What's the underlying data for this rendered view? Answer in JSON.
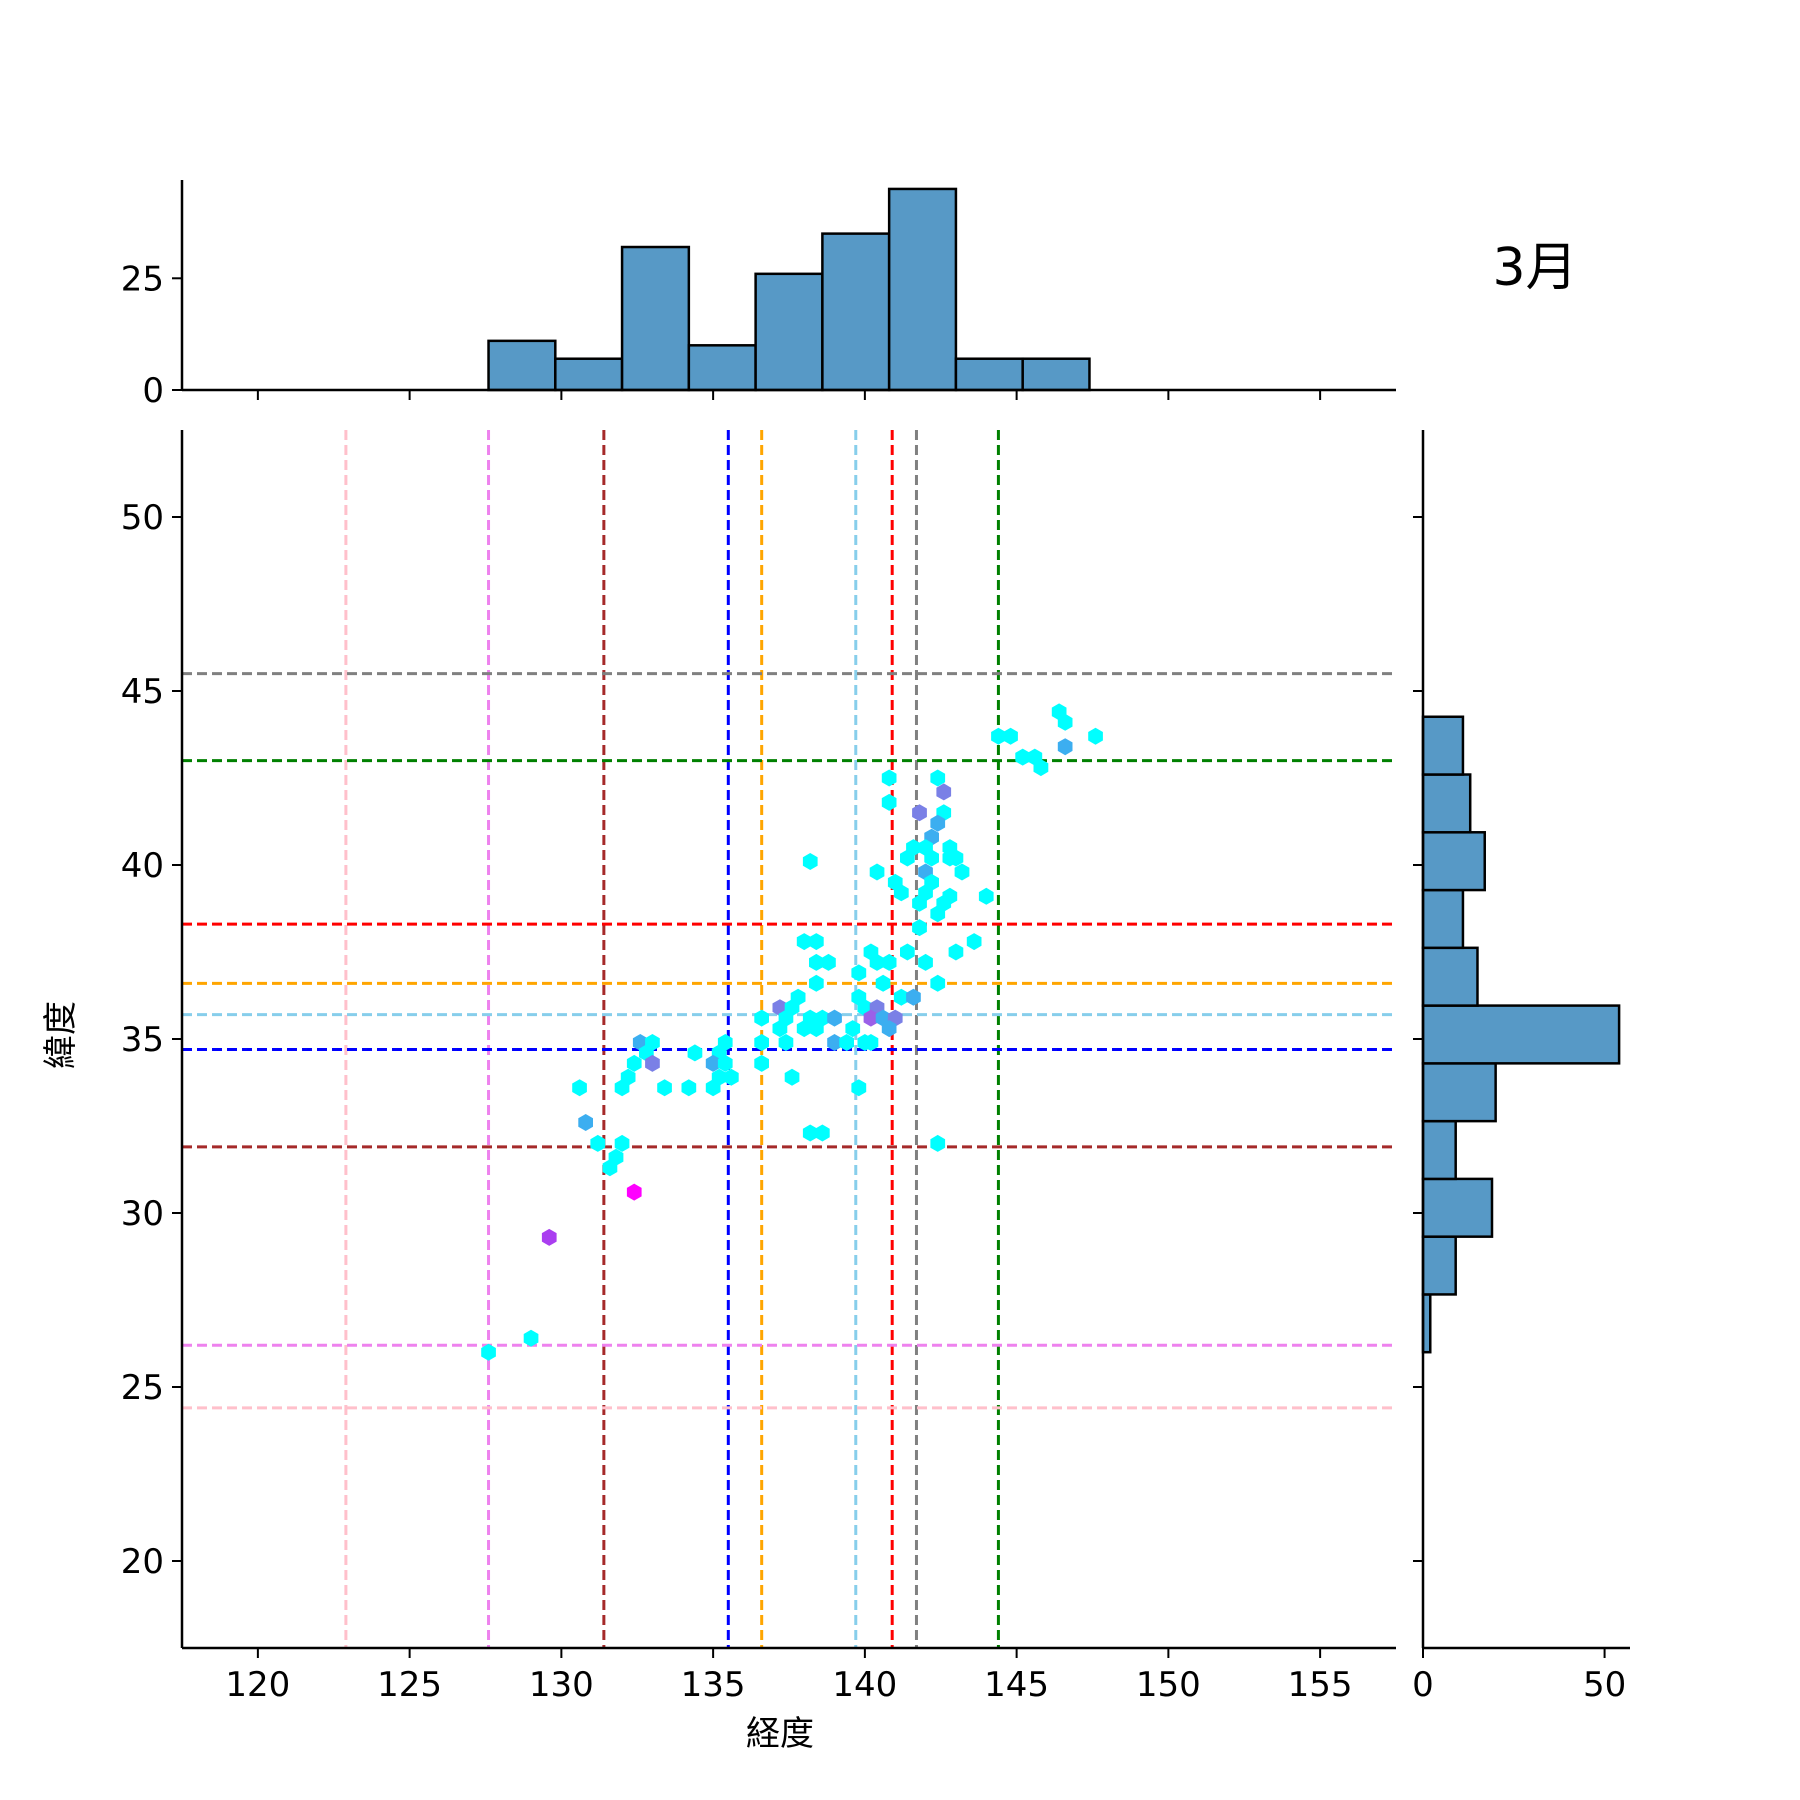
{
  "chart_data": {
    "type": "hexbin",
    "title": "3月",
    "xlabel": "経度",
    "ylabel": "緯度",
    "xlim": [
      117.5,
      157.5
    ],
    "ylim": [
      17.5,
      52.5
    ],
    "xticks": [
      120,
      125,
      130,
      135,
      140,
      145,
      150,
      155
    ],
    "yticks": [
      20,
      25,
      30,
      35,
      40,
      45,
      50
    ],
    "xtick_labels": [
      "120",
      "125",
      "130",
      "135",
      "140",
      "145",
      "150",
      "155"
    ],
    "ytick_labels": [
      "20",
      "25",
      "30",
      "35",
      "40",
      "45",
      "50"
    ],
    "reference_lines": {
      "vertical": [
        {
          "x": 122.9,
          "color": "#ffc0cb"
        },
        {
          "x": 127.6,
          "color": "#ee82ee"
        },
        {
          "x": 131.4,
          "color": "#a52a2a"
        },
        {
          "x": 135.5,
          "color": "#0000ff"
        },
        {
          "x": 136.6,
          "color": "#ffa500"
        },
        {
          "x": 139.7,
          "color": "#87ceeb"
        },
        {
          "x": 140.9,
          "color": "#ff0000"
        },
        {
          "x": 141.7,
          "color": "#808080"
        },
        {
          "x": 144.4,
          "color": "#008000"
        }
      ],
      "horizontal": [
        {
          "y": 45.5,
          "color": "#808080"
        },
        {
          "y": 43.0,
          "color": "#008000"
        },
        {
          "y": 38.3,
          "color": "#ff0000"
        },
        {
          "y": 36.6,
          "color": "#ffa500"
        },
        {
          "y": 35.7,
          "color": "#87ceeb"
        },
        {
          "y": 34.7,
          "color": "#0000ff"
        },
        {
          "y": 31.9,
          "color": "#a52a2a"
        },
        {
          "y": 26.2,
          "color": "#ee82ee"
        },
        {
          "y": 24.4,
          "color": "#ffc0cb"
        }
      ]
    },
    "points": [
      {
        "x": 146.4,
        "y": 44.4,
        "c": 1
      },
      {
        "x": 146.6,
        "y": 44.1,
        "c": 1
      },
      {
        "x": 144.4,
        "y": 43.7,
        "c": 1
      },
      {
        "x": 144.8,
        "y": 43.7,
        "c": 1
      },
      {
        "x": 147.6,
        "y": 43.7,
        "c": 1
      },
      {
        "x": 146.6,
        "y": 43.4,
        "c": 2
      },
      {
        "x": 145.2,
        "y": 43.1,
        "c": 1
      },
      {
        "x": 145.6,
        "y": 43.1,
        "c": 1
      },
      {
        "x": 145.8,
        "y": 42.8,
        "c": 1
      },
      {
        "x": 140.8,
        "y": 42.5,
        "c": 1
      },
      {
        "x": 142.4,
        "y": 42.5,
        "c": 1
      },
      {
        "x": 142.6,
        "y": 42.1,
        "c": 3
      },
      {
        "x": 140.8,
        "y": 41.8,
        "c": 1
      },
      {
        "x": 141.8,
        "y": 41.5,
        "c": 3
      },
      {
        "x": 142.6,
        "y": 41.5,
        "c": 1
      },
      {
        "x": 142.4,
        "y": 41.2,
        "c": 2
      },
      {
        "x": 142.2,
        "y": 40.8,
        "c": 2
      },
      {
        "x": 141.6,
        "y": 40.5,
        "c": 1
      },
      {
        "x": 142.8,
        "y": 40.5,
        "c": 1
      },
      {
        "x": 142.0,
        "y": 40.5,
        "c": 1
      },
      {
        "x": 141.4,
        "y": 40.2,
        "c": 1
      },
      {
        "x": 142.2,
        "y": 40.2,
        "c": 1
      },
      {
        "x": 142.8,
        "y": 40.2,
        "c": 1
      },
      {
        "x": 143.0,
        "y": 40.2,
        "c": 1
      },
      {
        "x": 138.2,
        "y": 40.1,
        "c": 1
      },
      {
        "x": 140.4,
        "y": 39.8,
        "c": 1
      },
      {
        "x": 142.0,
        "y": 39.8,
        "c": 2
      },
      {
        "x": 143.2,
        "y": 39.8,
        "c": 1
      },
      {
        "x": 141.0,
        "y": 39.5,
        "c": 1
      },
      {
        "x": 142.2,
        "y": 39.5,
        "c": 1
      },
      {
        "x": 141.2,
        "y": 39.2,
        "c": 1
      },
      {
        "x": 142.0,
        "y": 39.2,
        "c": 1
      },
      {
        "x": 142.8,
        "y": 39.1,
        "c": 1
      },
      {
        "x": 144.0,
        "y": 39.1,
        "c": 1
      },
      {
        "x": 141.8,
        "y": 38.9,
        "c": 1
      },
      {
        "x": 142.6,
        "y": 38.9,
        "c": 1
      },
      {
        "x": 142.4,
        "y": 38.6,
        "c": 1
      },
      {
        "x": 141.8,
        "y": 38.2,
        "c": 1
      },
      {
        "x": 138.0,
        "y": 37.8,
        "c": 1
      },
      {
        "x": 138.4,
        "y": 37.8,
        "c": 1
      },
      {
        "x": 143.6,
        "y": 37.8,
        "c": 1
      },
      {
        "x": 141.4,
        "y": 37.5,
        "c": 1
      },
      {
        "x": 143.0,
        "y": 37.5,
        "c": 1
      },
      {
        "x": 140.2,
        "y": 37.5,
        "c": 1
      },
      {
        "x": 138.4,
        "y": 37.2,
        "c": 1
      },
      {
        "x": 138.8,
        "y": 37.2,
        "c": 1
      },
      {
        "x": 140.4,
        "y": 37.2,
        "c": 1
      },
      {
        "x": 140.8,
        "y": 37.2,
        "c": 1
      },
      {
        "x": 142.0,
        "y": 37.2,
        "c": 1
      },
      {
        "x": 139.8,
        "y": 36.9,
        "c": 1
      },
      {
        "x": 138.4,
        "y": 36.6,
        "c": 1
      },
      {
        "x": 140.6,
        "y": 36.6,
        "c": 1
      },
      {
        "x": 142.4,
        "y": 36.6,
        "c": 1
      },
      {
        "x": 137.8,
        "y": 36.2,
        "c": 1
      },
      {
        "x": 139.8,
        "y": 36.2,
        "c": 1
      },
      {
        "x": 141.2,
        "y": 36.2,
        "c": 1
      },
      {
        "x": 141.6,
        "y": 36.2,
        "c": 2
      },
      {
        "x": 137.2,
        "y": 35.9,
        "c": 3
      },
      {
        "x": 137.6,
        "y": 35.9,
        "c": 1
      },
      {
        "x": 140.0,
        "y": 35.9,
        "c": 1
      },
      {
        "x": 140.4,
        "y": 35.9,
        "c": 3
      },
      {
        "x": 136.6,
        "y": 35.6,
        "c": 1
      },
      {
        "x": 137.4,
        "y": 35.6,
        "c": 1
      },
      {
        "x": 138.2,
        "y": 35.6,
        "c": 1
      },
      {
        "x": 138.6,
        "y": 35.6,
        "c": 1
      },
      {
        "x": 139.0,
        "y": 35.6,
        "c": 2
      },
      {
        "x": 140.2,
        "y": 35.6,
        "c": 4
      },
      {
        "x": 140.6,
        "y": 35.6,
        "c": 2
      },
      {
        "x": 141.0,
        "y": 35.6,
        "c": 3
      },
      {
        "x": 137.2,
        "y": 35.3,
        "c": 1
      },
      {
        "x": 138.0,
        "y": 35.3,
        "c": 1
      },
      {
        "x": 138.4,
        "y": 35.3,
        "c": 1
      },
      {
        "x": 139.6,
        "y": 35.3,
        "c": 1
      },
      {
        "x": 140.8,
        "y": 35.3,
        "c": 2
      },
      {
        "x": 132.6,
        "y": 34.9,
        "c": 2
      },
      {
        "x": 133.0,
        "y": 34.9,
        "c": 1
      },
      {
        "x": 135.4,
        "y": 34.9,
        "c": 1
      },
      {
        "x": 136.6,
        "y": 34.9,
        "c": 1
      },
      {
        "x": 137.4,
        "y": 34.9,
        "c": 1
      },
      {
        "x": 139.0,
        "y": 34.9,
        "c": 2
      },
      {
        "x": 139.4,
        "y": 34.9,
        "c": 1
      },
      {
        "x": 140.0,
        "y": 34.9,
        "c": 1
      },
      {
        "x": 140.2,
        "y": 34.9,
        "c": 1
      },
      {
        "x": 132.8,
        "y": 34.6,
        "c": 1
      },
      {
        "x": 134.4,
        "y": 34.6,
        "c": 1
      },
      {
        "x": 135.2,
        "y": 34.6,
        "c": 1
      },
      {
        "x": 132.4,
        "y": 34.3,
        "c": 1
      },
      {
        "x": 133.0,
        "y": 34.3,
        "c": 3
      },
      {
        "x": 135.0,
        "y": 34.3,
        "c": 2
      },
      {
        "x": 135.4,
        "y": 34.3,
        "c": 1
      },
      {
        "x": 136.6,
        "y": 34.3,
        "c": 1
      },
      {
        "x": 132.2,
        "y": 33.9,
        "c": 1
      },
      {
        "x": 135.2,
        "y": 33.9,
        "c": 1
      },
      {
        "x": 135.6,
        "y": 33.9,
        "c": 1
      },
      {
        "x": 137.6,
        "y": 33.9,
        "c": 1
      },
      {
        "x": 130.6,
        "y": 33.6,
        "c": 1
      },
      {
        "x": 132.0,
        "y": 33.6,
        "c": 1
      },
      {
        "x": 133.4,
        "y": 33.6,
        "c": 1
      },
      {
        "x": 134.2,
        "y": 33.6,
        "c": 1
      },
      {
        "x": 135.0,
        "y": 33.6,
        "c": 1
      },
      {
        "x": 139.8,
        "y": 33.6,
        "c": 1
      },
      {
        "x": 130.8,
        "y": 32.6,
        "c": 2
      },
      {
        "x": 138.2,
        "y": 32.3,
        "c": 1
      },
      {
        "x": 138.6,
        "y": 32.3,
        "c": 1
      },
      {
        "x": 131.2,
        "y": 32.0,
        "c": 1
      },
      {
        "x": 132.0,
        "y": 32.0,
        "c": 1
      },
      {
        "x": 142.4,
        "y": 32.0,
        "c": 1
      },
      {
        "x": 131.8,
        "y": 31.6,
        "c": 1
      },
      {
        "x": 131.6,
        "y": 31.3,
        "c": 1
      },
      {
        "x": 132.4,
        "y": 30.6,
        "c": 6
      },
      {
        "x": 129.6,
        "y": 29.3,
        "c": 5
      },
      {
        "x": 129.0,
        "y": 26.4,
        "c": 1
      },
      {
        "x": 127.6,
        "y": 26.0,
        "c": 1
      }
    ],
    "marginal_x": {
      "bin_edges": [
        127.6,
        129.8,
        132.0,
        134.2,
        136.4,
        138.6,
        140.8,
        143.0,
        145.2,
        147.4
      ],
      "counts": [
        11,
        7,
        32,
        10,
        26,
        35,
        45,
        7,
        7
      ],
      "yticks": [
        0,
        25
      ],
      "ytick_labels": [
        "0",
        "25"
      ],
      "ylim": [
        0,
        47
      ]
    },
    "marginal_y": {
      "bin_edges": [
        26.0,
        27.66,
        29.32,
        30.98,
        32.64,
        34.3,
        35.96,
        37.62,
        39.28,
        40.94,
        42.6,
        44.26
      ],
      "counts": [
        2,
        9,
        19,
        9,
        20,
        54,
        15,
        11,
        17,
        13,
        11
      ],
      "xticks": [
        0,
        50
      ],
      "xtick_labels": [
        "0",
        "50"
      ],
      "xlim": [
        0,
        57
      ]
    },
    "colors": {
      "hist_fill": "#5799c6",
      "hist_edge": "#000000",
      "hex_colormap": [
        "#00ffff",
        "#3caef0",
        "#7a80e6",
        "#9b60e8",
        "#aa3ef0",
        "#ff00ff"
      ]
    }
  }
}
